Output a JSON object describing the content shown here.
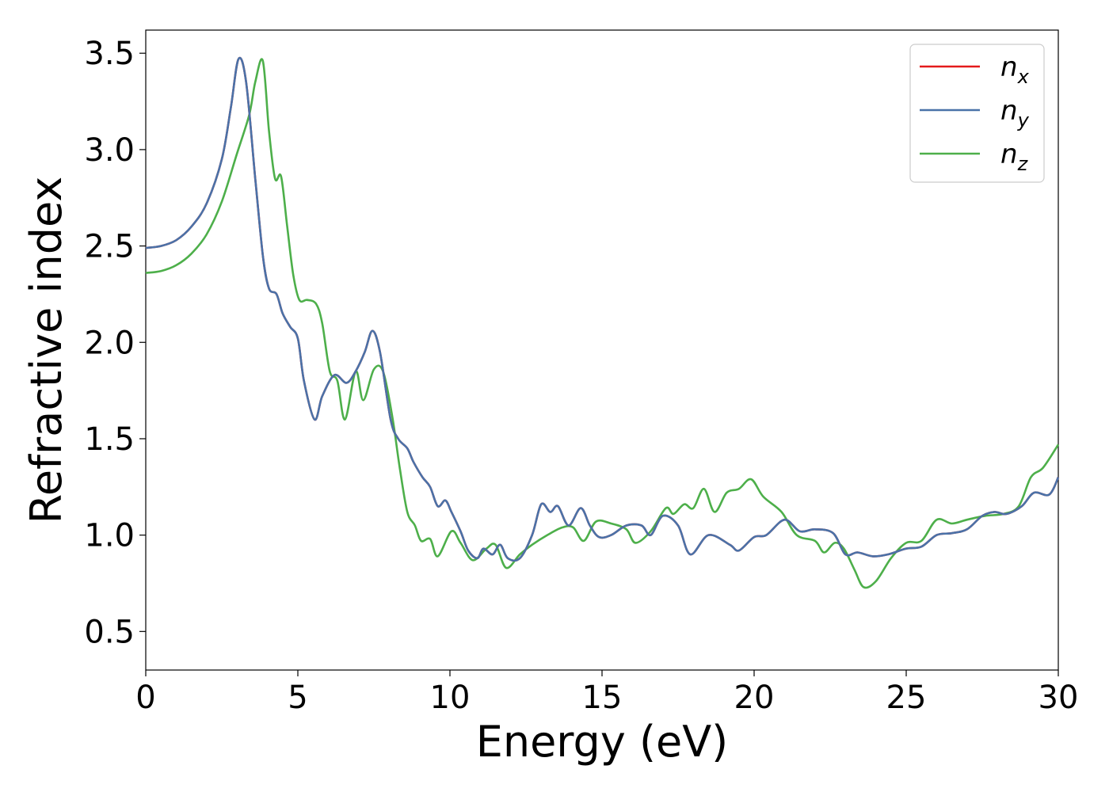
{
  "chart_data": {
    "type": "line",
    "title": "",
    "xlabel": "Energy (eV)",
    "ylabel": "Refractive index",
    "xlim": [
      0,
      30
    ],
    "ylim": [
      0.3,
      3.62
    ],
    "xticks": [
      0,
      5,
      10,
      15,
      20,
      25,
      30
    ],
    "yticks": [
      0.5,
      1.0,
      1.5,
      2.0,
      2.5,
      3.0,
      3.5
    ],
    "grid": false,
    "legend_position": "top-right",
    "series": [
      {
        "name": "n",
        "subscript": "x",
        "color": "#e41a1c",
        "points": [
          [
            0,
            2.49
          ],
          [
            0.5,
            2.5
          ],
          [
            1,
            2.53
          ],
          [
            1.5,
            2.6
          ],
          [
            2,
            2.72
          ],
          [
            2.5,
            2.95
          ],
          [
            2.8,
            3.22
          ],
          [
            3.05,
            3.47
          ],
          [
            3.3,
            3.35
          ],
          [
            3.6,
            2.85
          ],
          [
            3.85,
            2.45
          ],
          [
            4.05,
            2.28
          ],
          [
            4.3,
            2.25
          ],
          [
            4.5,
            2.15
          ],
          [
            4.75,
            2.08
          ],
          [
            5,
            2.02
          ],
          [
            5.2,
            1.8
          ],
          [
            5.55,
            1.6
          ],
          [
            5.8,
            1.72
          ],
          [
            6.2,
            1.83
          ],
          [
            6.6,
            1.79
          ],
          [
            6.9,
            1.85
          ],
          [
            7.2,
            1.95
          ],
          [
            7.45,
            2.06
          ],
          [
            7.7,
            1.95
          ],
          [
            8.05,
            1.6
          ],
          [
            8.3,
            1.5
          ],
          [
            8.6,
            1.45
          ],
          [
            8.8,
            1.38
          ],
          [
            9.1,
            1.3
          ],
          [
            9.35,
            1.25
          ],
          [
            9.6,
            1.15
          ],
          [
            9.85,
            1.18
          ],
          [
            10.05,
            1.12
          ],
          [
            10.35,
            1.02
          ],
          [
            10.6,
            0.92
          ],
          [
            10.9,
            0.88
          ],
          [
            11.1,
            0.93
          ],
          [
            11.4,
            0.9
          ],
          [
            11.65,
            0.95
          ],
          [
            11.9,
            0.88
          ],
          [
            12.3,
            0.88
          ],
          [
            12.7,
            1.0
          ],
          [
            13,
            1.16
          ],
          [
            13.3,
            1.12
          ],
          [
            13.55,
            1.15
          ],
          [
            13.9,
            1.05
          ],
          [
            14.3,
            1.14
          ],
          [
            14.6,
            1.05
          ],
          [
            14.9,
            0.99
          ],
          [
            15.3,
            1.0
          ],
          [
            15.8,
            1.05
          ],
          [
            16.3,
            1.05
          ],
          [
            16.6,
            1.0
          ],
          [
            17,
            1.1
          ],
          [
            17.5,
            1.05
          ],
          [
            17.9,
            0.9
          ],
          [
            18.5,
            1.0
          ],
          [
            19.2,
            0.95
          ],
          [
            19.5,
            0.92
          ],
          [
            20,
            0.99
          ],
          [
            20.4,
            1.0
          ],
          [
            21,
            1.08
          ],
          [
            21.5,
            1.02
          ],
          [
            22,
            1.03
          ],
          [
            22.6,
            1.01
          ],
          [
            23,
            0.9
          ],
          [
            23.4,
            0.91
          ],
          [
            23.9,
            0.89
          ],
          [
            24.4,
            0.9
          ],
          [
            25,
            0.93
          ],
          [
            25.5,
            0.94
          ],
          [
            26,
            1.0
          ],
          [
            26.5,
            1.01
          ],
          [
            27,
            1.03
          ],
          [
            27.5,
            1.1
          ],
          [
            27.9,
            1.12
          ],
          [
            28.3,
            1.11
          ],
          [
            28.8,
            1.15
          ],
          [
            29.2,
            1.22
          ],
          [
            29.7,
            1.21
          ],
          [
            30,
            1.3
          ]
        ]
      },
      {
        "name": "n",
        "subscript": "y",
        "color": "#4a72a8",
        "points": [
          [
            0,
            2.49
          ],
          [
            0.5,
            2.5
          ],
          [
            1,
            2.53
          ],
          [
            1.5,
            2.6
          ],
          [
            2,
            2.72
          ],
          [
            2.5,
            2.95
          ],
          [
            2.8,
            3.22
          ],
          [
            3.05,
            3.47
          ],
          [
            3.3,
            3.35
          ],
          [
            3.6,
            2.85
          ],
          [
            3.85,
            2.45
          ],
          [
            4.05,
            2.28
          ],
          [
            4.3,
            2.25
          ],
          [
            4.5,
            2.15
          ],
          [
            4.75,
            2.08
          ],
          [
            5,
            2.02
          ],
          [
            5.2,
            1.8
          ],
          [
            5.55,
            1.6
          ],
          [
            5.8,
            1.72
          ],
          [
            6.2,
            1.83
          ],
          [
            6.6,
            1.79
          ],
          [
            6.9,
            1.85
          ],
          [
            7.2,
            1.95
          ],
          [
            7.45,
            2.06
          ],
          [
            7.7,
            1.95
          ],
          [
            8.05,
            1.6
          ],
          [
            8.3,
            1.5
          ],
          [
            8.6,
            1.45
          ],
          [
            8.8,
            1.38
          ],
          [
            9.1,
            1.3
          ],
          [
            9.35,
            1.25
          ],
          [
            9.6,
            1.15
          ],
          [
            9.85,
            1.18
          ],
          [
            10.05,
            1.12
          ],
          [
            10.35,
            1.02
          ],
          [
            10.6,
            0.92
          ],
          [
            10.9,
            0.88
          ],
          [
            11.1,
            0.93
          ],
          [
            11.4,
            0.9
          ],
          [
            11.65,
            0.95
          ],
          [
            11.9,
            0.88
          ],
          [
            12.3,
            0.88
          ],
          [
            12.7,
            1.0
          ],
          [
            13,
            1.16
          ],
          [
            13.3,
            1.12
          ],
          [
            13.55,
            1.15
          ],
          [
            13.9,
            1.05
          ],
          [
            14.3,
            1.14
          ],
          [
            14.6,
            1.05
          ],
          [
            14.9,
            0.99
          ],
          [
            15.3,
            1.0
          ],
          [
            15.8,
            1.05
          ],
          [
            16.3,
            1.05
          ],
          [
            16.6,
            1.0
          ],
          [
            17,
            1.1
          ],
          [
            17.5,
            1.05
          ],
          [
            17.9,
            0.9
          ],
          [
            18.5,
            1.0
          ],
          [
            19.2,
            0.95
          ],
          [
            19.5,
            0.92
          ],
          [
            20,
            0.99
          ],
          [
            20.4,
            1.0
          ],
          [
            21,
            1.08
          ],
          [
            21.5,
            1.02
          ],
          [
            22,
            1.03
          ],
          [
            22.6,
            1.01
          ],
          [
            23,
            0.9
          ],
          [
            23.4,
            0.91
          ],
          [
            23.9,
            0.89
          ],
          [
            24.4,
            0.9
          ],
          [
            25,
            0.93
          ],
          [
            25.5,
            0.94
          ],
          [
            26,
            1.0
          ],
          [
            26.5,
            1.01
          ],
          [
            27,
            1.03
          ],
          [
            27.5,
            1.1
          ],
          [
            27.9,
            1.12
          ],
          [
            28.3,
            1.11
          ],
          [
            28.8,
            1.15
          ],
          [
            29.2,
            1.22
          ],
          [
            29.7,
            1.21
          ],
          [
            30,
            1.3
          ]
        ]
      },
      {
        "name": "n",
        "subscript": "z",
        "color": "#4daf4a",
        "points": [
          [
            0,
            2.36
          ],
          [
            0.5,
            2.37
          ],
          [
            1,
            2.4
          ],
          [
            1.5,
            2.46
          ],
          [
            2,
            2.56
          ],
          [
            2.5,
            2.73
          ],
          [
            3,
            2.98
          ],
          [
            3.4,
            3.18
          ],
          [
            3.6,
            3.35
          ],
          [
            3.85,
            3.46
          ],
          [
            4.05,
            3.1
          ],
          [
            4.25,
            2.85
          ],
          [
            4.45,
            2.86
          ],
          [
            4.65,
            2.6
          ],
          [
            4.85,
            2.35
          ],
          [
            5.05,
            2.22
          ],
          [
            5.3,
            2.22
          ],
          [
            5.6,
            2.2
          ],
          [
            5.8,
            2.1
          ],
          [
            6.05,
            1.85
          ],
          [
            6.3,
            1.8
          ],
          [
            6.55,
            1.6
          ],
          [
            6.9,
            1.85
          ],
          [
            7.15,
            1.7
          ],
          [
            7.5,
            1.86
          ],
          [
            7.8,
            1.85
          ],
          [
            8.1,
            1.62
          ],
          [
            8.35,
            1.35
          ],
          [
            8.6,
            1.12
          ],
          [
            8.85,
            1.05
          ],
          [
            9.05,
            0.97
          ],
          [
            9.35,
            0.98
          ],
          [
            9.6,
            0.89
          ],
          [
            10.05,
            1.02
          ],
          [
            10.35,
            0.96
          ],
          [
            10.75,
            0.87
          ],
          [
            11.2,
            0.93
          ],
          [
            11.5,
            0.95
          ],
          [
            11.85,
            0.83
          ],
          [
            12.3,
            0.9
          ],
          [
            12.7,
            0.95
          ],
          [
            13.2,
            1.0
          ],
          [
            13.7,
            1.04
          ],
          [
            14.05,
            1.04
          ],
          [
            14.4,
            0.97
          ],
          [
            14.8,
            1.07
          ],
          [
            15.3,
            1.06
          ],
          [
            15.8,
            1.03
          ],
          [
            16.1,
            0.96
          ],
          [
            16.6,
            1.02
          ],
          [
            17.1,
            1.14
          ],
          [
            17.35,
            1.11
          ],
          [
            17.7,
            1.16
          ],
          [
            18,
            1.14
          ],
          [
            18.35,
            1.24
          ],
          [
            18.7,
            1.12
          ],
          [
            19.1,
            1.22
          ],
          [
            19.5,
            1.24
          ],
          [
            19.9,
            1.29
          ],
          [
            20.3,
            1.2
          ],
          [
            20.9,
            1.12
          ],
          [
            21.4,
            1.0
          ],
          [
            22,
            0.97
          ],
          [
            22.3,
            0.91
          ],
          [
            22.65,
            0.96
          ],
          [
            22.95,
            0.93
          ],
          [
            23.3,
            0.82
          ],
          [
            23.6,
            0.73
          ],
          [
            24,
            0.76
          ],
          [
            24.5,
            0.88
          ],
          [
            25,
            0.96
          ],
          [
            25.5,
            0.97
          ],
          [
            26,
            1.08
          ],
          [
            26.5,
            1.06
          ],
          [
            27,
            1.08
          ],
          [
            27.6,
            1.1
          ],
          [
            28.2,
            1.11
          ],
          [
            28.7,
            1.15
          ],
          [
            29.1,
            1.3
          ],
          [
            29.5,
            1.35
          ],
          [
            30,
            1.47
          ]
        ]
      }
    ]
  }
}
